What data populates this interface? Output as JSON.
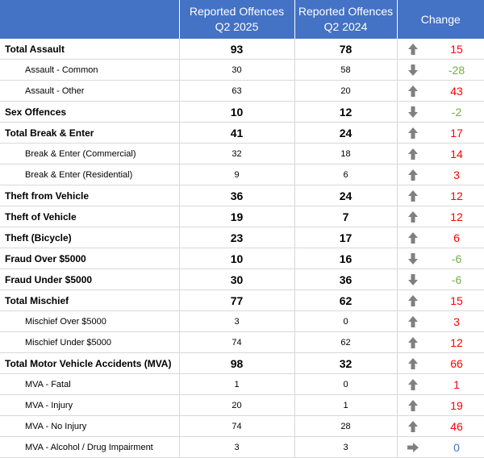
{
  "header": {
    "col_2025": [
      "Reported Offences",
      "Q2 2025"
    ],
    "col_2024": [
      "Reported Offences",
      "Q2 2024"
    ],
    "change": "Change"
  },
  "colors": {
    "header_bg": "#4472c4",
    "increase": "#ff0000",
    "decrease": "#70ad47",
    "no_change": "#4472c4",
    "arrow": "#808080"
  },
  "rows": [
    {
      "label": "Total Assault",
      "q2025": "93",
      "q2024": "78",
      "trend": "up",
      "change": "15",
      "level": "main"
    },
    {
      "label": "Assault - Common",
      "q2025": "30",
      "q2024": "58",
      "trend": "down",
      "change": "-28",
      "level": "sub"
    },
    {
      "label": "Assault - Other",
      "q2025": "63",
      "q2024": "20",
      "trend": "up",
      "change": "43",
      "level": "sub"
    },
    {
      "label": "Sex Offences",
      "q2025": "10",
      "q2024": "12",
      "trend": "down",
      "change": "-2",
      "level": "main"
    },
    {
      "label": "Total Break & Enter",
      "q2025": "41",
      "q2024": "24",
      "trend": "up",
      "change": "17",
      "level": "main"
    },
    {
      "label": "Break & Enter (Commercial)",
      "q2025": "32",
      "q2024": "18",
      "trend": "up",
      "change": "14",
      "level": "sub"
    },
    {
      "label": "Break & Enter (Residential)",
      "q2025": "9",
      "q2024": "6",
      "trend": "up",
      "change": "3",
      "level": "sub"
    },
    {
      "label": "Theft from Vehicle",
      "q2025": "36",
      "q2024": "24",
      "trend": "up",
      "change": "12",
      "level": "main"
    },
    {
      "label": "Theft of Vehicle",
      "q2025": "19",
      "q2024": "7",
      "trend": "up",
      "change": "12",
      "level": "main"
    },
    {
      "label": "Theft (Bicycle)",
      "q2025": "23",
      "q2024": "17",
      "trend": "up",
      "change": "6",
      "level": "main"
    },
    {
      "label": "Fraud Over $5000",
      "q2025": "10",
      "q2024": "16",
      "trend": "down",
      "change": "-6",
      "level": "main"
    },
    {
      "label": "Fraud Under $5000",
      "q2025": "30",
      "q2024": "36",
      "trend": "down",
      "change": "-6",
      "level": "main"
    },
    {
      "label": "Total Mischief",
      "q2025": "77",
      "q2024": "62",
      "trend": "up",
      "change": "15",
      "level": "main"
    },
    {
      "label": "Mischief Over $5000",
      "q2025": "3",
      "q2024": "0",
      "trend": "up",
      "change": "3",
      "level": "sub"
    },
    {
      "label": "Mischief Under $5000",
      "q2025": "74",
      "q2024": "62",
      "trend": "up",
      "change": "12",
      "level": "sub"
    },
    {
      "label": "Total Motor Vehicle Accidents (MVA)",
      "q2025": "98",
      "q2024": "32",
      "trend": "up",
      "change": "66",
      "level": "main"
    },
    {
      "label": "MVA - Fatal",
      "q2025": "1",
      "q2024": "0",
      "trend": "up",
      "change": "1",
      "level": "sub"
    },
    {
      "label": "MVA - Injury",
      "q2025": "20",
      "q2024": "1",
      "trend": "up",
      "change": "19",
      "level": "sub"
    },
    {
      "label": "MVA -  No Injury",
      "q2025": "74",
      "q2024": "28",
      "trend": "up",
      "change": "46",
      "level": "sub"
    },
    {
      "label": "MVA - Alcohol / Drug Impairment",
      "q2025": "3",
      "q2024": "3",
      "trend": "flat",
      "change": "0",
      "level": "sub"
    }
  ]
}
